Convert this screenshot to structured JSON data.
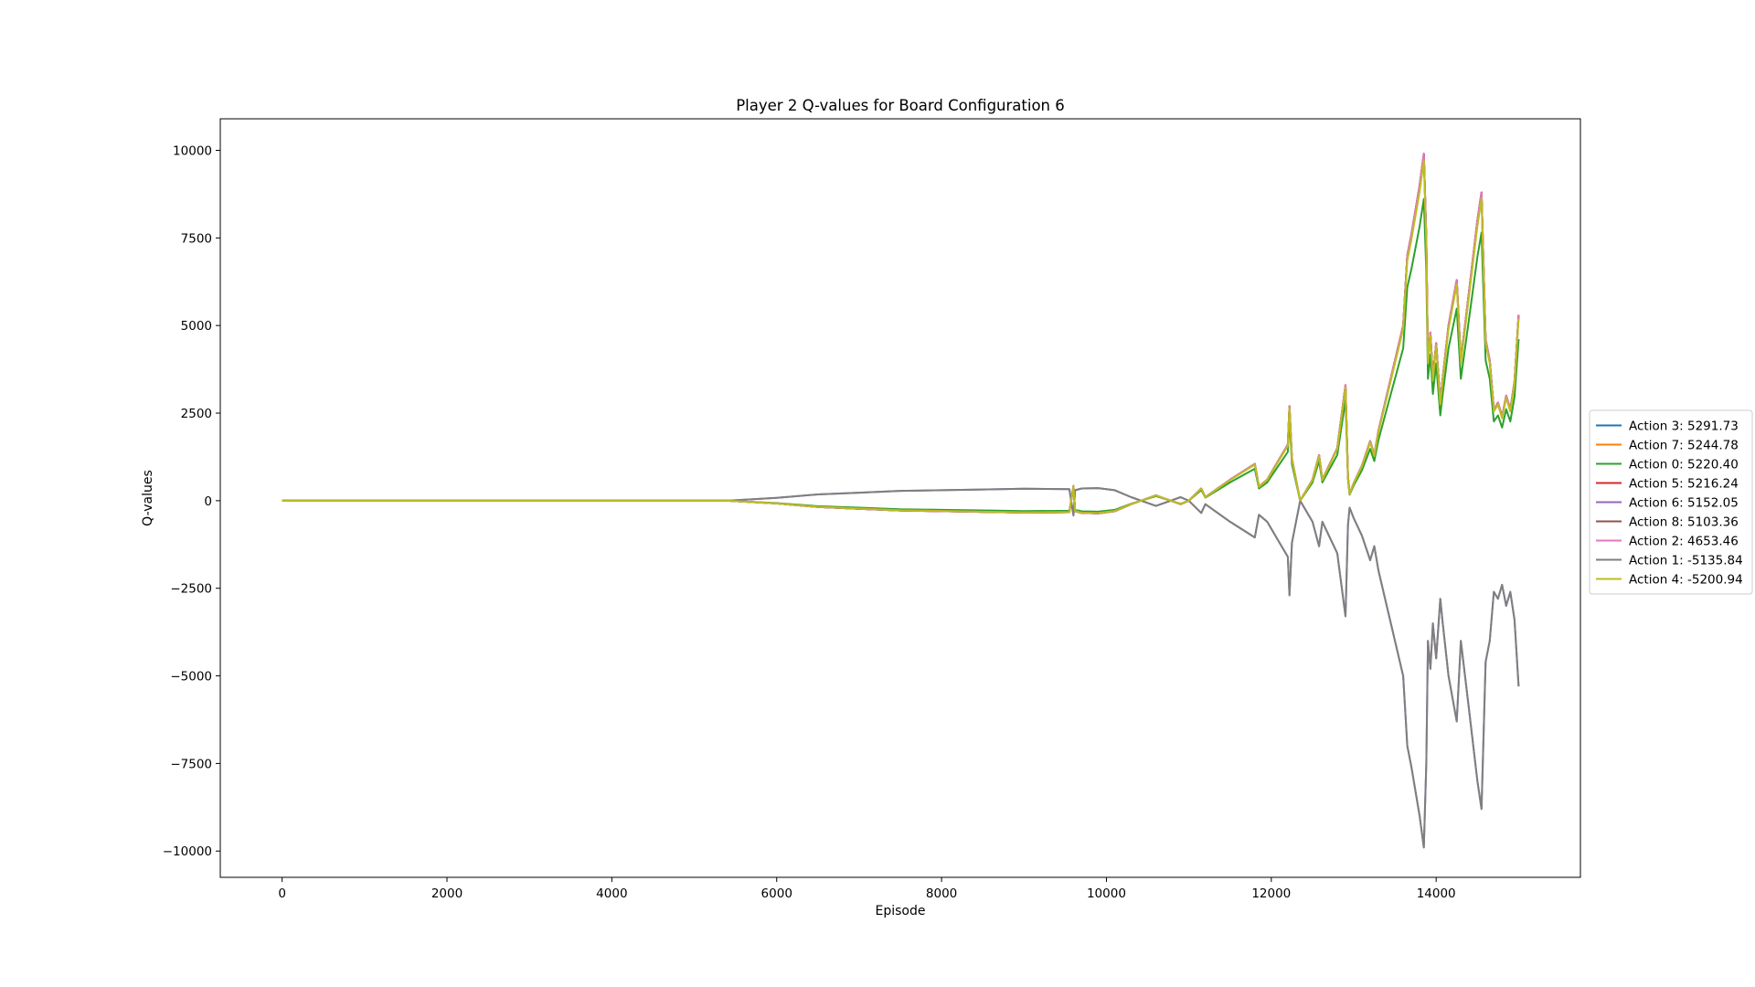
{
  "chart_data": {
    "type": "line",
    "title": "Player 2 Q-values for Board Configuration 6",
    "xlabel": "Episode",
    "ylabel": "Q-values",
    "xlim": [
      -750,
      15750
    ],
    "ylim": [
      -10750,
      10900
    ],
    "xticks": [
      0,
      2000,
      4000,
      6000,
      8000,
      10000,
      12000,
      14000
    ],
    "xtick_labels": [
      "0",
      "2000",
      "4000",
      "6000",
      "8000",
      "10000",
      "12000",
      "14000"
    ],
    "yticks": [
      -10000,
      -7500,
      -5000,
      -2500,
      0,
      2500,
      5000,
      7500,
      10000
    ],
    "ytick_labels": [
      "−10000",
      "−7500",
      "−5000",
      "−2500",
      "0",
      "2500",
      "5000",
      "7500",
      "10000"
    ],
    "grid": false,
    "legend_position": "center-right-outside",
    "x": [
      0,
      5400,
      6000,
      6500,
      7000,
      7500,
      8000,
      8500,
      9000,
      9550,
      9600,
      9620,
      9700,
      9900,
      10100,
      10300,
      10600,
      10900,
      11000,
      11150,
      11200,
      11500,
      11800,
      11850,
      11950,
      12000,
      12100,
      12200,
      12220,
      12250,
      12350,
      12500,
      12580,
      12620,
      12700,
      12800,
      12900,
      12930,
      12950,
      13000,
      13100,
      13200,
      13250,
      13300,
      13400,
      13500,
      13600,
      13650,
      13700,
      13800,
      13850,
      13880,
      13900,
      13930,
      13960,
      14000,
      14050,
      14080,
      14150,
      14250,
      14300,
      14400,
      14500,
      14550,
      14600,
      14650,
      14700,
      14750,
      14800,
      14850,
      14900,
      14950,
      15000
    ],
    "series": [
      {
        "name": "Action 3: 5291.73",
        "color": "#1f77b4",
        "sign": 1,
        "scale": 1.0
      },
      {
        "name": "Action 7: 5244.78",
        "color": "#ff7f0e",
        "sign": 1,
        "scale": 1.0
      },
      {
        "name": "Action 0: 5220.40",
        "color": "#2ca02c",
        "sign": 1,
        "scale": 0.87
      },
      {
        "name": "Action 5: 5216.24",
        "color": "#d62728",
        "sign": 1,
        "scale": 1.0
      },
      {
        "name": "Action 6: 5152.05",
        "color": "#9467bd",
        "sign": -1,
        "scale": 1.0
      },
      {
        "name": "Action 8: 5103.36",
        "color": "#8c564b",
        "sign": 1,
        "scale": 1.0
      },
      {
        "name": "Action 2: 4653.46",
        "color": "#e377c2",
        "sign": 1,
        "scale": 1.0
      },
      {
        "name": "Action 1: -5135.84",
        "color": "#7f7f7f",
        "sign": -1,
        "scale": 1.0
      },
      {
        "name": "Action 4: -5200.94",
        "color": "#bcbd22",
        "sign": 1,
        "scale": 0.98
      }
    ],
    "base_values": [
      0,
      0,
      -80,
      -180,
      -230,
      -280,
      -300,
      -320,
      -340,
      -330,
      420,
      -300,
      -350,
      -360,
      -300,
      -100,
      150,
      -100,
      0,
      350,
      100,
      600,
      1050,
      400,
      600,
      800,
      1200,
      1600,
      2700,
      1200,
      0,
      600,
      1300,
      600,
      1000,
      1500,
      3300,
      700,
      200,
      500,
      1000,
      1700,
      1300,
      2000,
      3000,
      4000,
      5000,
      7000,
      7600,
      9000,
      9900,
      7500,
      4000,
      4800,
      3500,
      4500,
      2800,
      3500,
      5000,
      6300,
      4000,
      6000,
      8000,
      8800,
      4600,
      4000,
      2600,
      2800,
      2400,
      3000,
      2600,
      3400,
      5300
    ]
  }
}
